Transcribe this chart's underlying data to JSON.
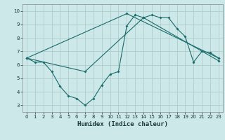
{
  "title": "",
  "xlabel": "Humidex (Indice chaleur)",
  "ylabel": "",
  "background_color": "#cce8e8",
  "grid_color": "#b0cccc",
  "line_color": "#1a6b6b",
  "xlim": [
    -0.5,
    23.5
  ],
  "ylim": [
    2.5,
    10.5
  ],
  "xticks": [
    0,
    1,
    2,
    3,
    4,
    5,
    6,
    7,
    8,
    9,
    10,
    11,
    12,
    13,
    14,
    15,
    16,
    17,
    18,
    19,
    20,
    21,
    22,
    23
  ],
  "yticks": [
    3,
    4,
    5,
    6,
    7,
    8,
    9,
    10
  ],
  "series1_x": [
    0,
    1,
    2,
    3,
    4,
    5,
    6,
    7,
    8,
    9,
    10,
    11,
    12,
    13,
    14,
    15,
    16,
    17,
    18,
    19,
    20,
    21,
    22,
    23
  ],
  "series1_y": [
    6.5,
    6.2,
    6.2,
    5.5,
    4.4,
    3.7,
    3.5,
    3.0,
    3.5,
    4.5,
    5.3,
    5.5,
    8.9,
    9.7,
    9.5,
    9.7,
    9.5,
    9.5,
    8.7,
    8.1,
    6.2,
    7.0,
    6.9,
    6.5
  ],
  "series2_x": [
    0,
    12,
    23
  ],
  "series2_y": [
    6.5,
    9.8,
    6.5
  ],
  "series3_x": [
    0,
    7,
    14,
    23
  ],
  "series3_y": [
    6.5,
    5.5,
    9.5,
    6.3
  ]
}
